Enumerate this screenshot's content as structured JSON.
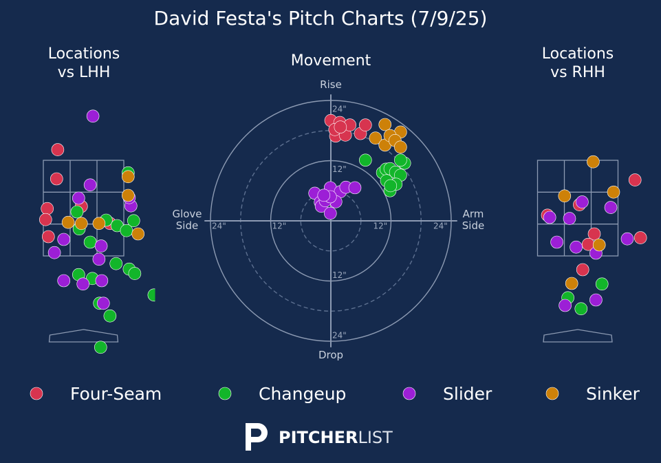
{
  "title": "David Festa's Pitch Charts (7/9/25)",
  "logo": {
    "bold": "PITCHER",
    "light": "LIST"
  },
  "chart_data": [
    {
      "type": "scatter",
      "title": "Locations vs LHH",
      "xlim": [
        -1.3,
        1.3
      ],
      "ylim": [
        0,
        4.6
      ],
      "series": [
        {
          "name": "Four-Seam",
          "color": "#d7344f",
          "x": [
            -0.47,
            -0.49,
            -0.04,
            -0.66,
            -0.69,
            -0.64,
            0.48
          ],
          "values": [
            3.78,
            3.25,
            2.75,
            2.71,
            2.51,
            2.2,
            2.44
          ]
        },
        {
          "name": "Changeup",
          "color": "#12b52a",
          "x": [
            0.81,
            -0.12,
            -0.08,
            0.41,
            0.61,
            0.91,
            0.78,
            0.12,
            0.59,
            -0.09,
            0.16,
            0.83,
            0.93,
            0.29,
            0.48,
            1.28,
            0.31
          ],
          "values": [
            3.36,
            2.65,
            2.34,
            2.5,
            2.4,
            2.49,
            2.31,
            2.1,
            1.71,
            1.51,
            1.44,
            1.61,
            1.53,
            0.99,
            0.76,
            1.14,
            0.19
          ]
        },
        {
          "name": "Slider",
          "color": "#9c1fd6",
          "x": [
            0.17,
            0.12,
            -0.09,
            0.86,
            0.83,
            -0.36,
            -0.53,
            0.32,
            0.28,
            -0.36,
            -0.01,
            0.33,
            0.36
          ],
          "values": [
            4.39,
            3.14,
            2.9,
            2.76,
            2.91,
            2.15,
            1.91,
            2.03,
            1.79,
            1.4,
            1.34,
            1.4,
            0.99
          ]
        },
        {
          "name": "Sinker",
          "color": "#cd8109",
          "x": [
            0.81,
            0.81,
            -0.28,
            -0.04,
            0.28,
            0.99
          ],
          "values": [
            3.29,
            2.95,
            2.46,
            2.44,
            2.44,
            2.25
          ]
        }
      ]
    },
    {
      "type": "polar",
      "title": "Movement",
      "top_label": "Rise",
      "bottom_label": "Drop",
      "left_label": "Glove Side",
      "right_label": "Arm Side",
      "rlim": [
        0,
        24
      ],
      "rticks": [
        {
          "value": 12,
          "label": "12\""
        },
        {
          "value": 24,
          "label": "24\""
        }
      ],
      "dashed_rings": [
        6,
        18
      ],
      "series": [
        {
          "name": "Four-Seam",
          "color": "#d7344f",
          "x": [
            0,
            1.8,
            0.96,
            2.9,
            3.8,
            5.9,
            6.9,
            0.8,
            1.9
          ],
          "values": [
            20.0,
            19.6,
            16.9,
            17.1,
            19.1,
            17.4,
            19.1,
            18.2,
            18.7
          ]
        },
        {
          "name": "Changeup",
          "color": "#12b52a",
          "x": [
            6.9,
            10.3,
            11.0,
            11.8,
            12.9,
            14.7,
            13.9,
            11.1,
            11.8,
            13.0,
            13.9,
            11.9
          ],
          "values": [
            12.1,
            9.6,
            10.3,
            10.4,
            9.7,
            11.5,
            9.1,
            8.0,
            6.0,
            7.3,
            12.1,
            7.0
          ]
        },
        {
          "name": "Slider",
          "color": "#9c1fd6",
          "x": [
            -3.2,
            -0.1,
            1.9,
            3.0,
            4.8,
            -2.1,
            1.0,
            -1.9,
            -0.1,
            -1.1,
            -0.1,
            -1.4
          ],
          "values": [
            5.5,
            6.6,
            5.8,
            6.7,
            6.6,
            3.7,
            3.8,
            2.9,
            1.5,
            4.0,
            4.8,
            5.1
          ]
        },
        {
          "name": "Sinker",
          "color": "#cd8109",
          "x": [
            10.8,
            13.9,
            8.9,
            10.8,
            11.8,
            12.8,
            13.9
          ],
          "values": [
            19.2,
            17.7,
            16.5,
            15.1,
            17.0,
            16.0,
            14.7
          ]
        }
      ]
    },
    {
      "type": "scatter",
      "title": "Locations vs RHH",
      "xlim": [
        -1.3,
        1.3
      ],
      "ylim": [
        0,
        4.6
      ],
      "series": [
        {
          "name": "Four-Seam",
          "color": "#d7344f",
          "x": [
            1.04,
            -0.55,
            0.03,
            0.3,
            0.19,
            1.14,
            0.09
          ],
          "values": [
            3.23,
            2.59,
            2.78,
            2.25,
            2.06,
            2.18,
            1.6
          ]
        },
        {
          "name": "Changeup",
          "color": "#12b52a",
          "x": [
            0.44,
            -0.18,
            0.06
          ],
          "values": [
            1.34,
            1.09,
            0.89
          ]
        },
        {
          "name": "Slider",
          "color": "#9c1fd6",
          "x": [
            -0.51,
            -0.15,
            0.08,
            0.6,
            -0.38,
            -0.03,
            0.33,
            0.9,
            0.33,
            -0.23
          ],
          "values": [
            2.55,
            2.53,
            2.83,
            2.73,
            2.1,
            2.01,
            1.9,
            2.16,
            1.05,
            0.95
          ]
        },
        {
          "name": "Sinker",
          "color": "#cd8109",
          "x": [
            0.28,
            0.65,
            -0.24,
            0.39,
            -0.11
          ],
          "values": [
            3.56,
            3.01,
            2.94,
            2.05,
            1.35
          ]
        }
      ]
    }
  ]
}
